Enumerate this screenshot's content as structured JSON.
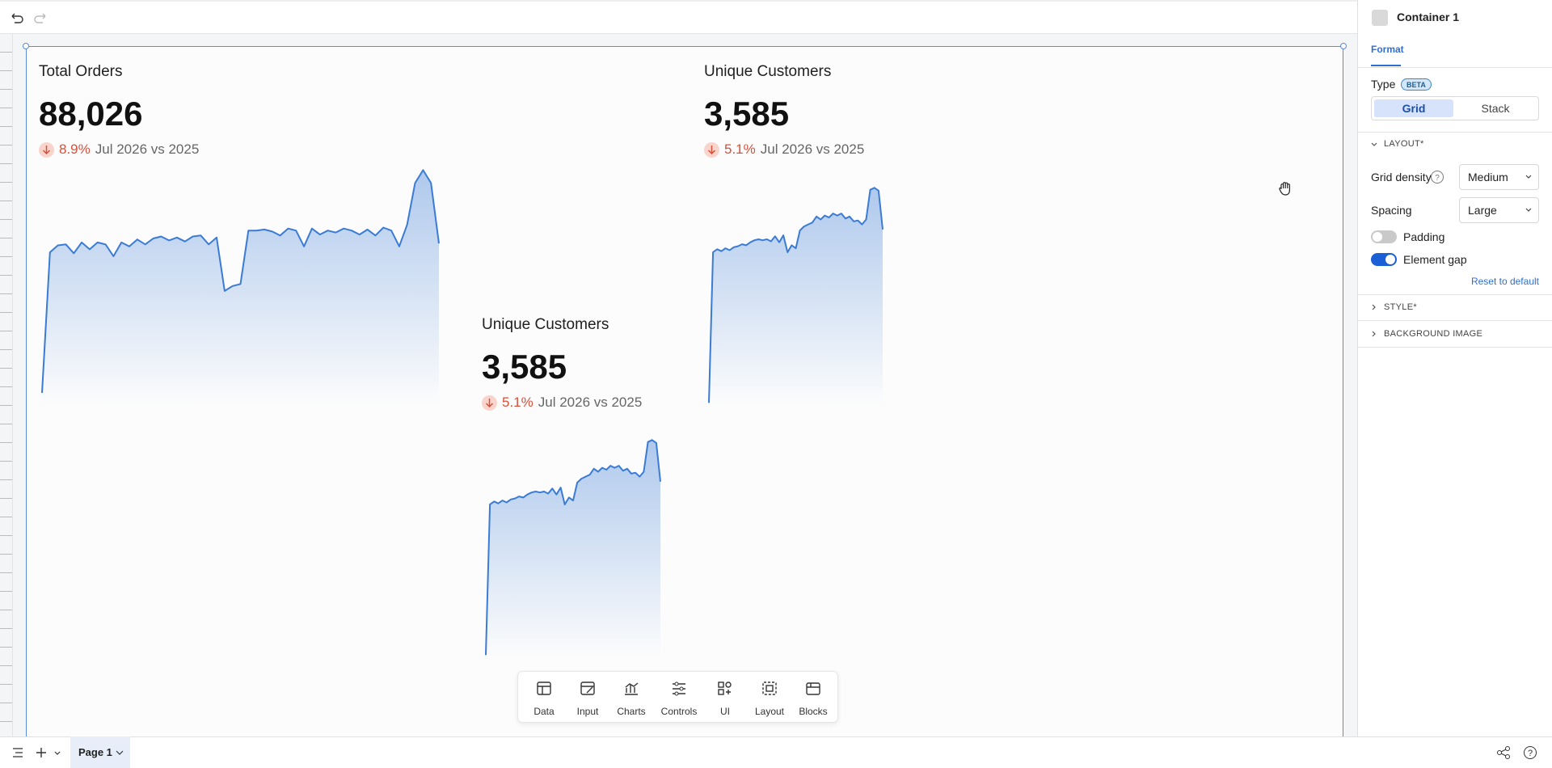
{
  "widgets": [
    {
      "title": "Total Orders",
      "value": "88,026",
      "delta": "8.9%",
      "period": "Jul 2026 vs 2025",
      "sparkline": {
        "type": "line",
        "ylim": [
          0,
          240
        ],
        "color": "#3a7bd5",
        "values": [
          13,
          155,
          162,
          163,
          154,
          165,
          158,
          165,
          163,
          151,
          165,
          161,
          168,
          163,
          169,
          171,
          167,
          170,
          166,
          171,
          172,
          163,
          170,
          116,
          121,
          123,
          177,
          177,
          178,
          176,
          172,
          179,
          177,
          161,
          179,
          173,
          177,
          175,
          179,
          177,
          173,
          178,
          172,
          180,
          177,
          161,
          183,
          225,
          238,
          225,
          164
        ]
      }
    },
    {
      "title": "Unique Customers",
      "value": "3,585",
      "delta": "5.1%",
      "period": "Jul 2026 vs 2025",
      "sparkline": {
        "type": "line",
        "ylim": [
          0,
          230
        ],
        "color": "#3a7bd5",
        "values": [
          3,
          155,
          158,
          156,
          159,
          157,
          160,
          161,
          163,
          162,
          165,
          167,
          168,
          167,
          168,
          166,
          171,
          165,
          172,
          155,
          162,
          159,
          177,
          181,
          183,
          185,
          191,
          188,
          192,
          190,
          194,
          192,
          194,
          189,
          191,
          186,
          187,
          183,
          188,
          218,
          220,
          217,
          178
        ]
      }
    },
    {
      "title": "Unique Customers",
      "value": "3,585",
      "delta": "5.1%",
      "period": "Jul 2026 vs 2025",
      "sparkline": {
        "type": "line",
        "ylim": [
          0,
          230
        ],
        "color": "#3a7bd5",
        "values": [
          3,
          155,
          158,
          156,
          159,
          157,
          160,
          161,
          163,
          162,
          165,
          167,
          168,
          167,
          168,
          166,
          171,
          165,
          172,
          155,
          162,
          159,
          177,
          181,
          183,
          185,
          191,
          188,
          192,
          190,
          194,
          192,
          194,
          189,
          191,
          186,
          187,
          183,
          188,
          218,
          220,
          217,
          178
        ]
      }
    }
  ],
  "insert_toolbar": {
    "items": [
      "Data",
      "Input",
      "Charts",
      "Controls",
      "UI",
      "Layout",
      "Blocks"
    ]
  },
  "panel": {
    "title": "Container 1",
    "tab": "Format",
    "type_label": "Type",
    "badge": "BETA",
    "type_options": [
      "Grid",
      "Stack"
    ],
    "selected": 0,
    "layout_section": "LAYOUT*",
    "grid_density": {
      "label": "Grid density",
      "value": "Medium"
    },
    "spacing": {
      "label": "Spacing",
      "value": "Large"
    },
    "padding": {
      "label": "Padding",
      "on": false
    },
    "element_gap": {
      "label": "Element gap",
      "on": true
    },
    "reset": "Reset to default",
    "sections": [
      "STYLE*",
      "BACKGROUND IMAGE"
    ]
  },
  "footer": {
    "page": "Page 1"
  }
}
